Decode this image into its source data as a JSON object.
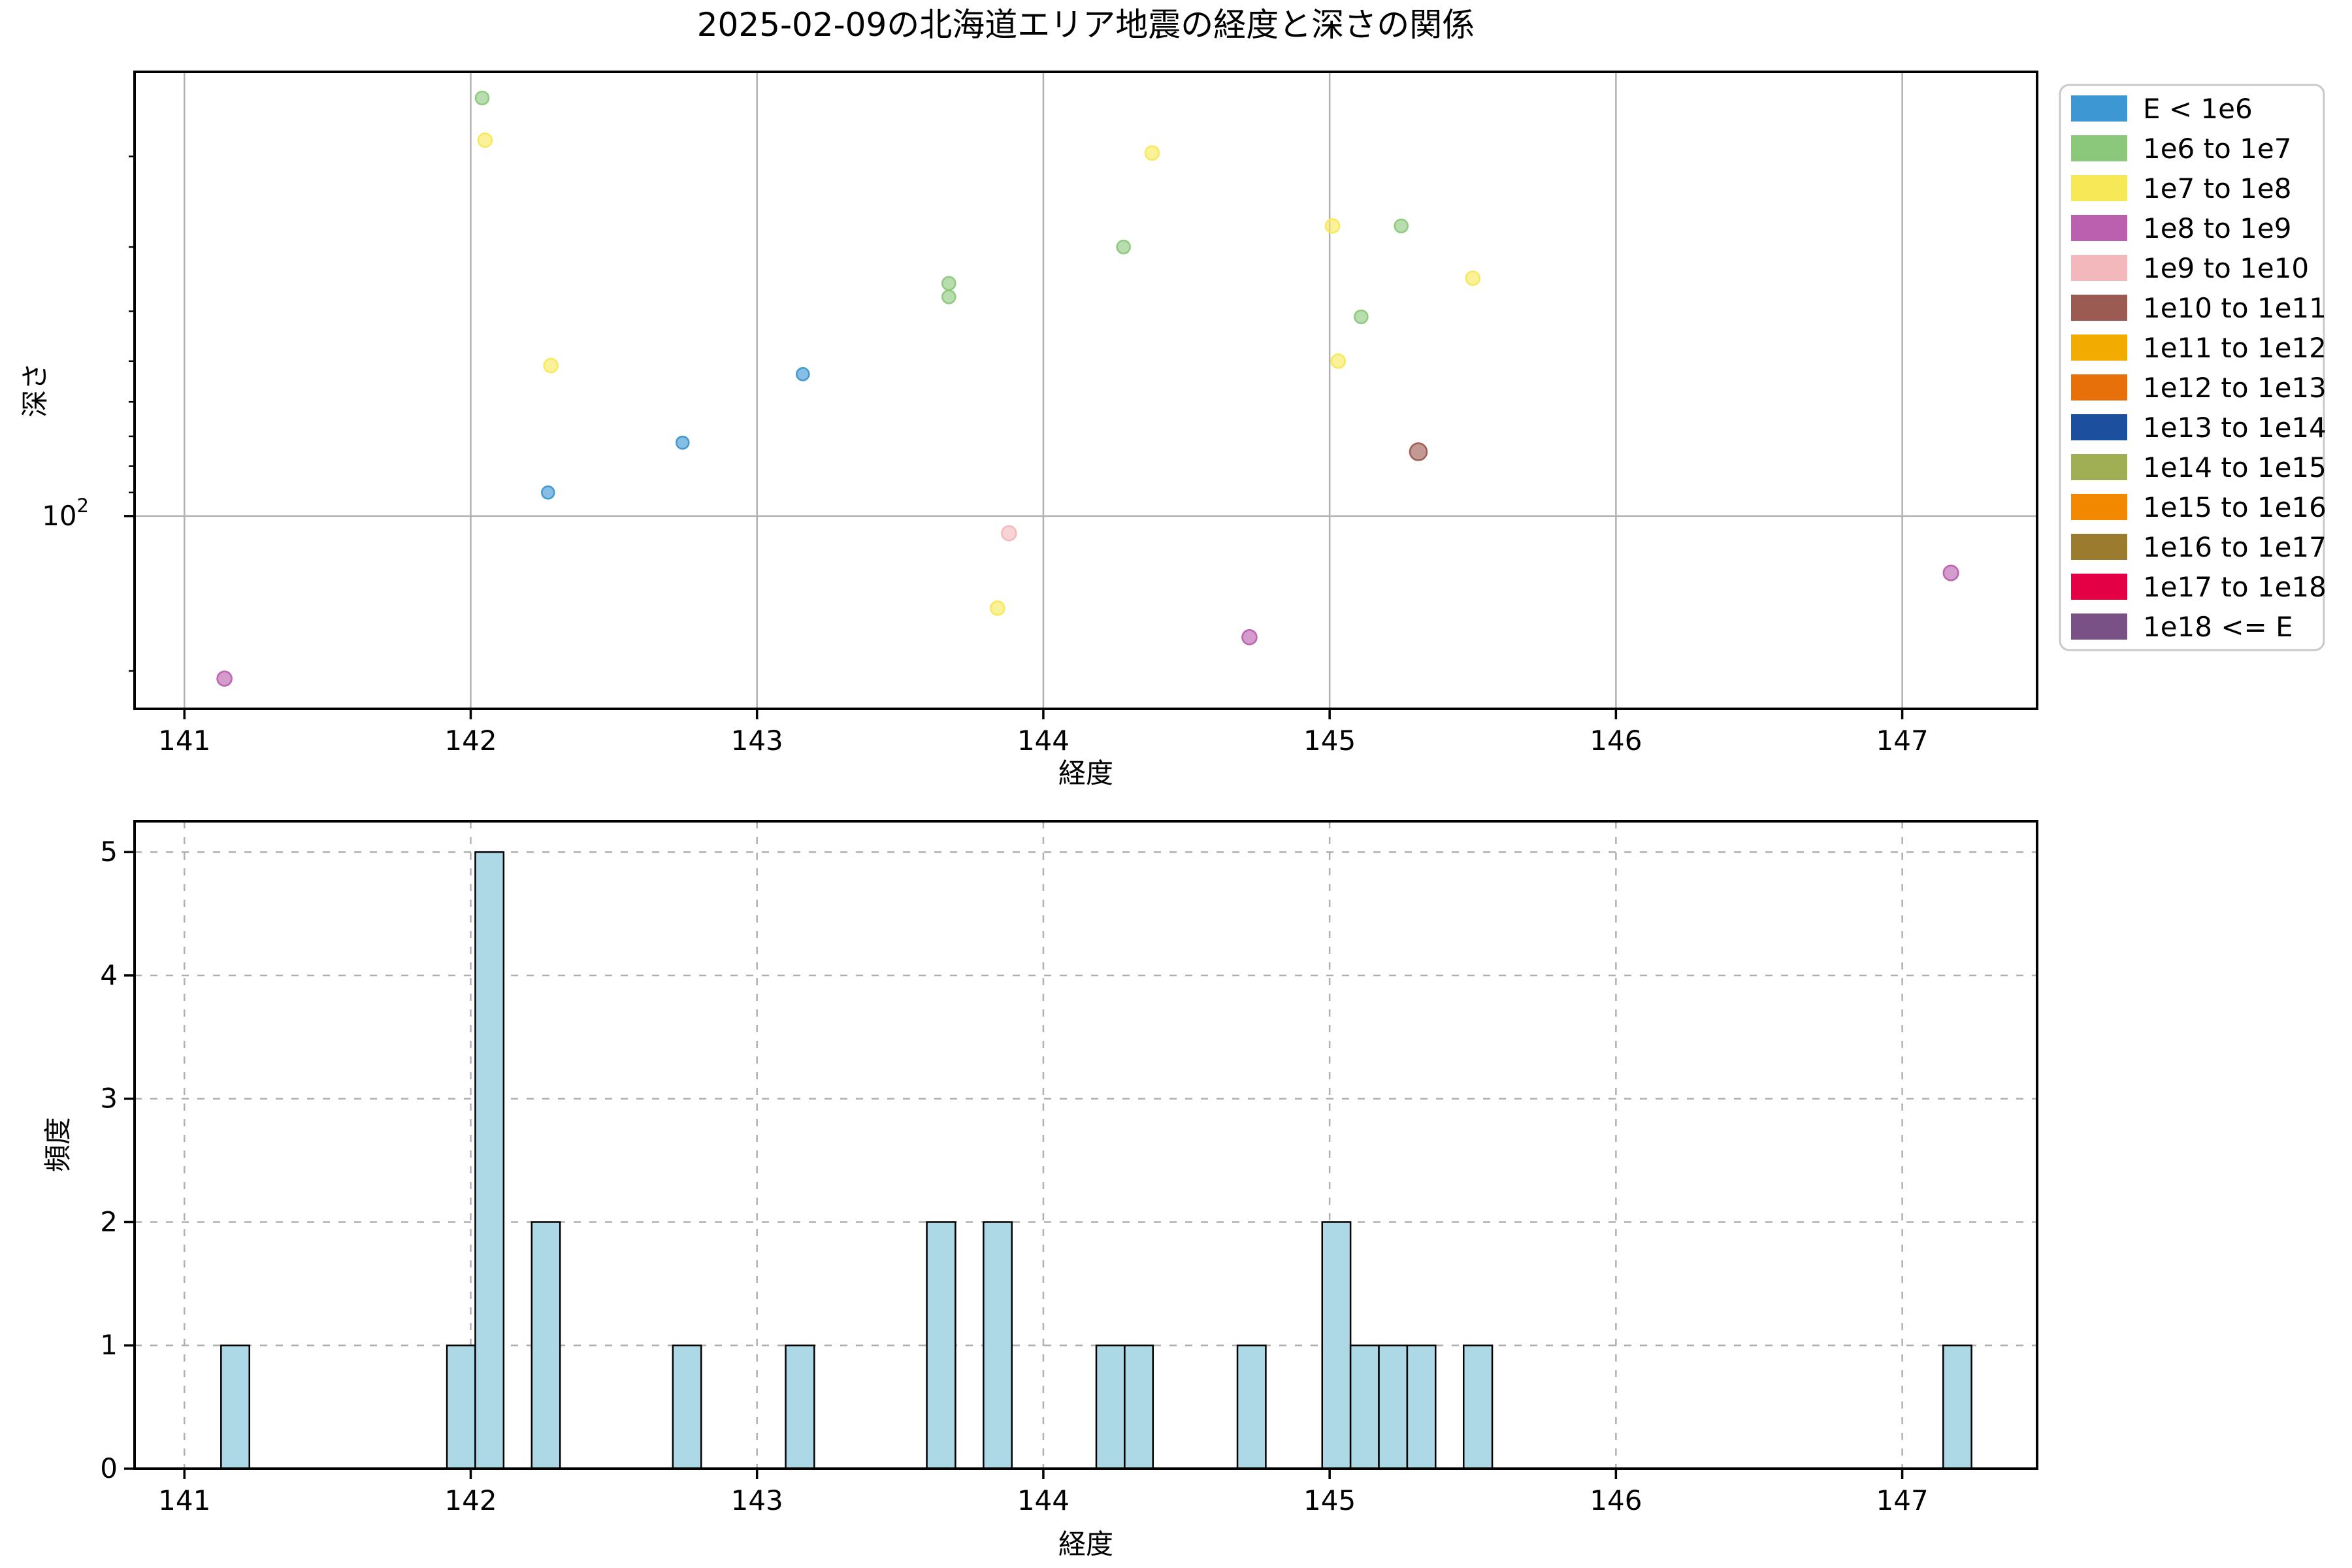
{
  "figure": {
    "title": "2025-02-09の北海道エリア地震の経度と深さの関係",
    "background": "#ffffff",
    "grid_color": "#b0b0b0",
    "spine_color": "#000000"
  },
  "legend": {
    "entries": [
      {
        "label": "E < 1e6",
        "color": "#3d97d3"
      },
      {
        "label": "1e6 to 1e7",
        "color": "#8cc87c"
      },
      {
        "label": "1e7 to 1e8",
        "color": "#f7e858"
      },
      {
        "label": "1e8 to 1e9",
        "color": "#ba60ae"
      },
      {
        "label": "1e9 to 1e10",
        "color": "#f3b8bc"
      },
      {
        "label": "1e10 to 1e11",
        "color": "#9c5b52"
      },
      {
        "label": "1e11 to 1e12",
        "color": "#f2ab00"
      },
      {
        "label": "1e12 to 1e13",
        "color": "#e8700a"
      },
      {
        "label": "1e13 to 1e14",
        "color": "#1d4f9f"
      },
      {
        "label": "1e14 to 1e15",
        "color": "#a0ae54"
      },
      {
        "label": "1e15 to 1e16",
        "color": "#f18800"
      },
      {
        "label": "1e16 to 1e17",
        "color": "#9b7b2e"
      },
      {
        "label": "1e17 to 1e18",
        "color": "#e40045"
      },
      {
        "label": "1e18 <= E",
        "color": "#7a5187"
      }
    ]
  },
  "chart_data": [
    {
      "type": "scatter",
      "title": "2025-02-09の北海道エリア地震の経度と深さの関係",
      "xlabel": "経度",
      "ylabel": "深さ",
      "x_range": [
        140.826,
        147.471
      ],
      "x_ticks": [
        141,
        142,
        143,
        144,
        145,
        146,
        147
      ],
      "y_scale": "log",
      "y_inverted": true,
      "y_range_depth": [
        13.7,
        237
      ],
      "y_major_tick": {
        "value": 100,
        "label_base": "10",
        "label_exponent": "2"
      },
      "y_minor_ticks": [
        20,
        30,
        40,
        50,
        60,
        70,
        80,
        90,
        200
      ],
      "grid": "solid",
      "legend_position": "outside-right",
      "points": [
        {
          "x": 141.14,
          "depth": 207,
          "energy": "1e8 to 1e9",
          "r": 11
        },
        {
          "x": 142.04,
          "depth": 15.4,
          "energy": "1e6 to 1e7",
          "r": 10
        },
        {
          "x": 142.05,
          "depth": 18.6,
          "energy": "1e7 to 1e8",
          "r": 10.5
        },
        {
          "x": 142.28,
          "depth": 51,
          "energy": "1e7 to 1e8",
          "r": 10.5
        },
        {
          "x": 142.27,
          "depth": 90,
          "energy": "E < 1e6",
          "r": 9.5
        },
        {
          "x": 142.74,
          "depth": 72,
          "energy": "E < 1e6",
          "r": 9.5
        },
        {
          "x": 143.16,
          "depth": 53,
          "energy": "E < 1e6",
          "r": 9.5
        },
        {
          "x": 143.67,
          "depth": 35.3,
          "energy": "1e6 to 1e7",
          "r": 10
        },
        {
          "x": 143.67,
          "depth": 37.5,
          "energy": "1e6 to 1e7",
          "r": 10
        },
        {
          "x": 143.88,
          "depth": 108,
          "energy": "1e9 to 1e10",
          "r": 11
        },
        {
          "x": 143.84,
          "depth": 151,
          "energy": "1e7 to 1e8",
          "r": 10.5
        },
        {
          "x": 144.28,
          "depth": 30,
          "energy": "1e6 to 1e7",
          "r": 10
        },
        {
          "x": 144.38,
          "depth": 19.7,
          "energy": "1e7 to 1e8",
          "r": 10.5
        },
        {
          "x": 144.72,
          "depth": 172,
          "energy": "1e8 to 1e9",
          "r": 11
        },
        {
          "x": 145.01,
          "depth": 27.3,
          "energy": "1e7 to 1e8",
          "r": 10.5
        },
        {
          "x": 145.03,
          "depth": 50,
          "energy": "1e7 to 1e8",
          "r": 10.5
        },
        {
          "x": 145.11,
          "depth": 41,
          "energy": "1e6 to 1e7",
          "r": 10
        },
        {
          "x": 145.25,
          "depth": 27.3,
          "energy": "1e6 to 1e7",
          "r": 10
        },
        {
          "x": 145.31,
          "depth": 75,
          "energy": "1e10 to 1e11",
          "r": 13
        },
        {
          "x": 145.5,
          "depth": 34.5,
          "energy": "1e7 to 1e8",
          "r": 10.5
        },
        {
          "x": 147.17,
          "depth": 129,
          "energy": "1e8 to 1e9",
          "r": 11.3
        }
      ]
    },
    {
      "type": "histogram",
      "xlabel": "経度",
      "ylabel": "頻度",
      "x_range": [
        140.826,
        147.471
      ],
      "x_ticks": [
        141,
        142,
        143,
        144,
        145,
        146,
        147
      ],
      "y_range": [
        0,
        5.25
      ],
      "y_ticks": [
        0,
        1,
        2,
        3,
        4,
        5
      ],
      "grid": "dashed",
      "bar_fill": "#add8e6",
      "bar_edge": "#000000",
      "bins": [
        {
          "x0": 141.128,
          "x1": 141.227,
          "count": 1
        },
        {
          "x0": 141.917,
          "x1": 142.016,
          "count": 1
        },
        {
          "x0": 142.016,
          "x1": 142.115,
          "count": 5
        },
        {
          "x0": 142.213,
          "x1": 142.312,
          "count": 2
        },
        {
          "x0": 142.706,
          "x1": 142.805,
          "count": 1
        },
        {
          "x0": 143.1,
          "x1": 143.2,
          "count": 1
        },
        {
          "x0": 143.593,
          "x1": 143.693,
          "count": 2
        },
        {
          "x0": 143.791,
          "x1": 143.89,
          "count": 2
        },
        {
          "x0": 144.185,
          "x1": 144.284,
          "count": 1
        },
        {
          "x0": 144.284,
          "x1": 144.383,
          "count": 1
        },
        {
          "x0": 144.678,
          "x1": 144.777,
          "count": 1
        },
        {
          "x0": 144.974,
          "x1": 145.073,
          "count": 2
        },
        {
          "x0": 145.073,
          "x1": 145.172,
          "count": 1
        },
        {
          "x0": 145.172,
          "x1": 145.271,
          "count": 1
        },
        {
          "x0": 145.271,
          "x1": 145.37,
          "count": 1
        },
        {
          "x0": 145.468,
          "x1": 145.568,
          "count": 1
        },
        {
          "x0": 147.143,
          "x1": 147.242,
          "count": 1
        }
      ]
    }
  ]
}
